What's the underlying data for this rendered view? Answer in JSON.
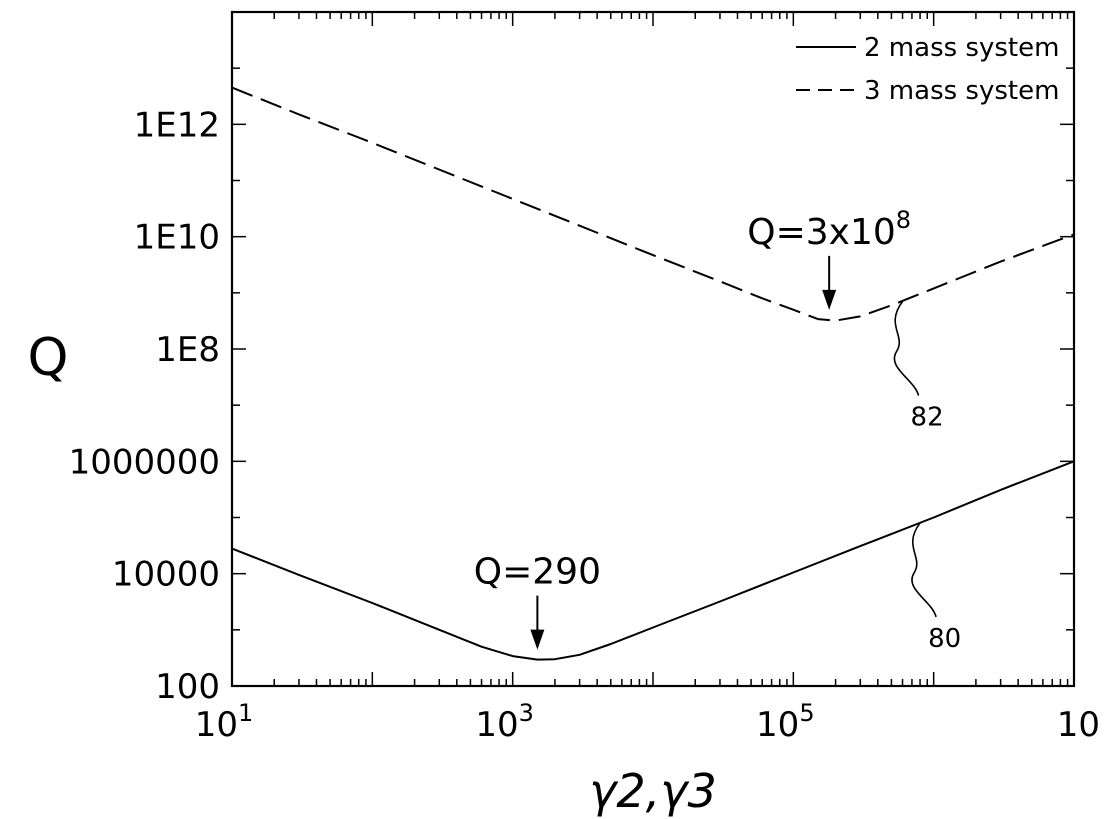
{
  "chart_data": {
    "type": "line",
    "xscale": "log",
    "yscale": "log",
    "xlim": [
      10,
      10000000
    ],
    "ylim": [
      100,
      100000000000000
    ],
    "xlabel": "γ2,γ3",
    "ylabel": "Q",
    "x_tick_labels": [
      {
        "x": 10,
        "base": "10",
        "exp": "1"
      },
      {
        "x": 1000,
        "base": "10",
        "exp": "3"
      },
      {
        "x": 100000,
        "base": "10",
        "exp": "5"
      },
      {
        "x": 10000000,
        "base": "10",
        "exp": ""
      }
    ],
    "y_tick_labels": [
      {
        "y": 100,
        "label": "100"
      },
      {
        "y": 10000,
        "label": "10000"
      },
      {
        "y": 1000000,
        "label": "1000000"
      },
      {
        "y": 100000000,
        "label": "1E8"
      },
      {
        "y": 10000000000,
        "label": "1E10"
      },
      {
        "y": 1000000000000,
        "label": "1E12"
      }
    ],
    "legend": {
      "position": "top-right",
      "entries": [
        {
          "label": "2 mass system",
          "style": "solid"
        },
        {
          "label": "3 mass system",
          "style": "dashed"
        }
      ]
    },
    "series": [
      {
        "name": "2 mass system",
        "style": "solid",
        "ref": "80",
        "points": [
          [
            10,
            28000
          ],
          [
            30,
            9500
          ],
          [
            100,
            3000
          ],
          [
            300,
            1000
          ],
          [
            600,
            500
          ],
          [
            1000,
            340
          ],
          [
            1500,
            295
          ],
          [
            2000,
            300
          ],
          [
            3000,
            360
          ],
          [
            5000,
            560
          ],
          [
            10000,
            1100
          ],
          [
            30000,
            3200
          ],
          [
            100000,
            10500
          ],
          [
            300000,
            31000
          ],
          [
            1000000,
            100000
          ],
          [
            3000000,
            310000
          ],
          [
            10000000,
            1000000
          ]
        ]
      },
      {
        "name": "3 mass system",
        "style": "dashed",
        "ref": "82",
        "points": [
          [
            10,
            4500000000000
          ],
          [
            30,
            1500000000000
          ],
          [
            100,
            470000000000
          ],
          [
            1000,
            47000000000
          ],
          [
            10000,
            4700000000
          ],
          [
            30000,
            1600000000
          ],
          [
            60000,
            800000000
          ],
          [
            100000,
            500000000
          ],
          [
            150000,
            340000000
          ],
          [
            200000,
            320000000
          ],
          [
            300000,
            380000000
          ],
          [
            500000,
            600000000
          ],
          [
            1000000,
            1200000000
          ],
          [
            3000000,
            3600000000
          ],
          [
            10000000,
            11000000000
          ]
        ]
      }
    ],
    "annotations": [
      {
        "type": "arrow",
        "base": "Q=290",
        "superscript": "",
        "x": 1500,
        "y": 295
      },
      {
        "type": "arrow",
        "base": "Q=3x10",
        "superscript": "8",
        "x": 180000,
        "y": 330000000
      },
      {
        "type": "reference",
        "label": "80",
        "series": "2 mass system",
        "x": 800000,
        "y": 80000
      },
      {
        "type": "reference",
        "label": "82",
        "series": "3 mass system",
        "x": 600000,
        "y": 700000000
      }
    ],
    "grid": false
  }
}
